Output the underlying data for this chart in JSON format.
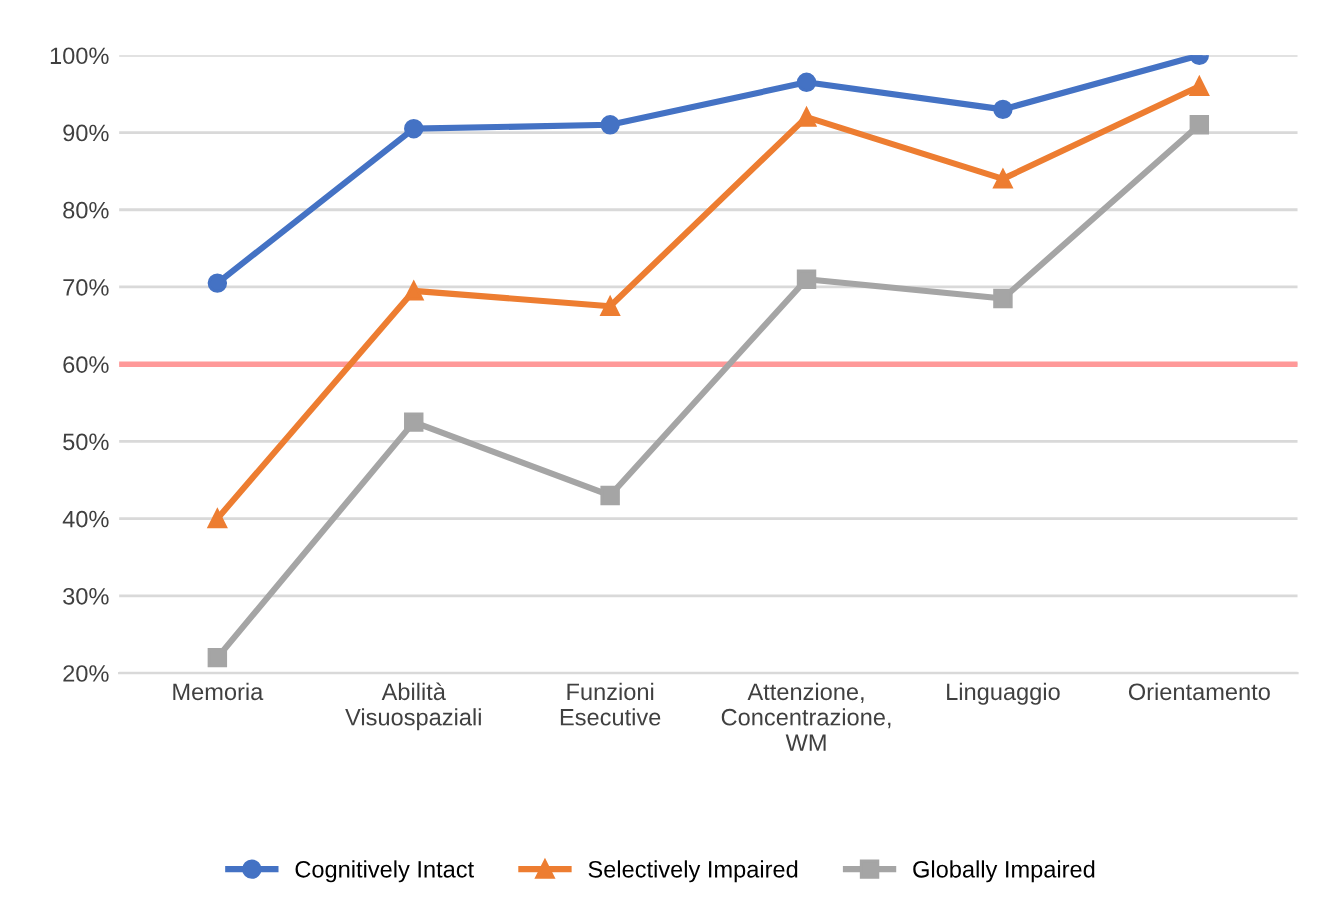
{
  "chart_data": {
    "type": "line",
    "categories": [
      "Memoria",
      "Abilità\nVisuospaziali",
      "Funzioni\nEsecutive",
      "Attenzione,\nConcentrazione,\nWM",
      "Linguaggio",
      "Orientamento"
    ],
    "series": [
      {
        "name": "Cognitively Intact",
        "color": "#4472c4",
        "marker": "circle",
        "values": [
          70.5,
          90.5,
          91,
          96.5,
          93,
          100
        ]
      },
      {
        "name": "Selectively Impaired",
        "color": "#ed7d31",
        "marker": "triangle",
        "values": [
          40,
          69.5,
          67.5,
          92,
          84,
          96
        ]
      },
      {
        "name": "Globally Impaired",
        "color": "#a5a5a5",
        "marker": "square",
        "values": [
          22,
          52.5,
          43,
          71,
          68.5,
          91
        ]
      }
    ],
    "ylim": [
      20,
      100
    ],
    "yticks": [
      {
        "value": 20,
        "label": "20%"
      },
      {
        "value": 30,
        "label": "30%"
      },
      {
        "value": 40,
        "label": "40%"
      },
      {
        "value": 50,
        "label": "50%"
      },
      {
        "value": 60,
        "label": "60%"
      },
      {
        "value": 70,
        "label": "70%"
      },
      {
        "value": 80,
        "label": "80%"
      },
      {
        "value": 90,
        "label": "90%"
      },
      {
        "value": 100,
        "label": "100%"
      }
    ],
    "ref_lines": [
      {
        "axis": "y",
        "value": 60,
        "label": null,
        "color": "#ff9999"
      }
    ],
    "grid": "y",
    "legend": "bottom",
    "line_style": "solid"
  }
}
